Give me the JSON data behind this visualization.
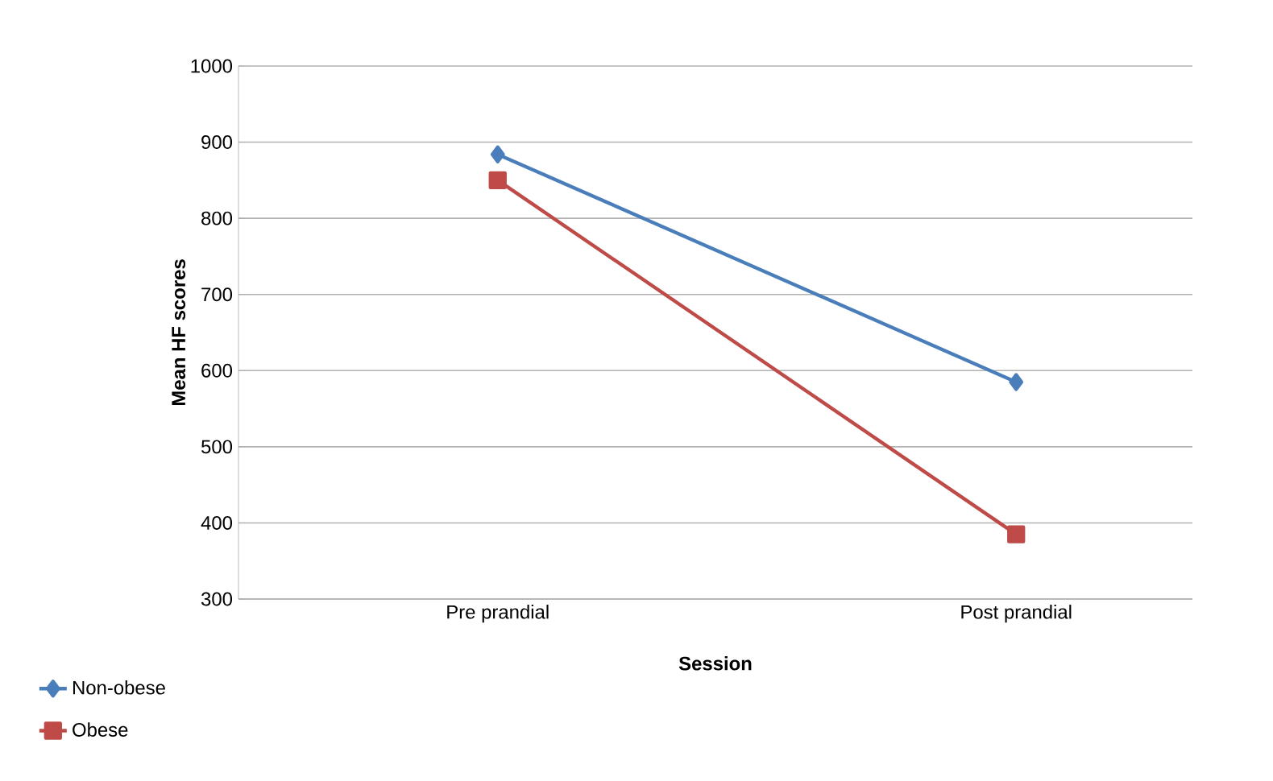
{
  "chart_data": {
    "type": "line",
    "xlabel": "Session",
    "ylabel": "Mean HF scores",
    "categories": [
      "Pre prandial",
      "Post prandial"
    ],
    "series": [
      {
        "name": "Non-obese",
        "color": "#4a7ebb",
        "values": [
          884,
          585
        ],
        "marker": "diamond"
      },
      {
        "name": "Obese",
        "color": "#be4b48",
        "values": [
          850,
          385
        ],
        "marker": "square"
      }
    ],
    "ylim": [
      300,
      1000
    ],
    "yticks": [
      300,
      400,
      500,
      600,
      700,
      800,
      900,
      1000
    ],
    "grid": "y",
    "legend": "bottom left",
    "line_style": "solid"
  }
}
